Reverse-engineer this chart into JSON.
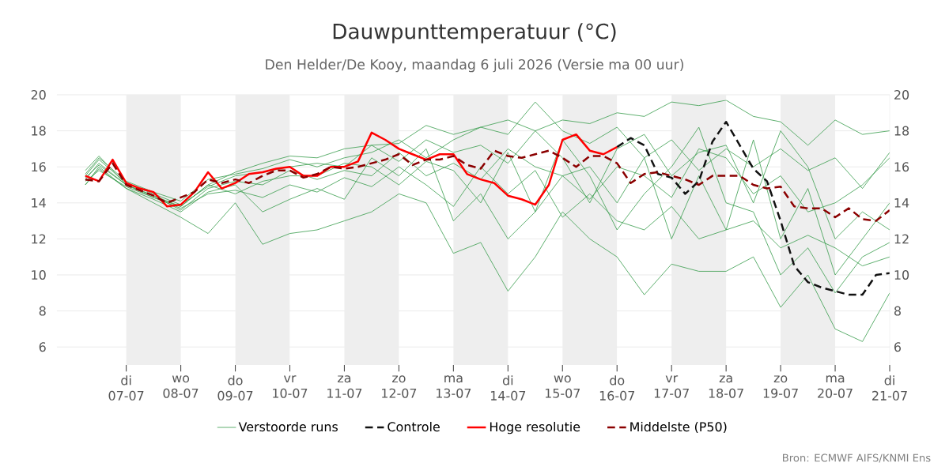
{
  "chart_data": {
    "type": "line",
    "title": "Dauwpunttemperatuur (°C)",
    "subtitle": "Den Helder/De Kooy, maandag  6 juli 2026 (Versie ma 00 uur)",
    "annotations": [
      "Bron: ECMWF AIFS/KNMI Ens"
    ],
    "xlim": [
      "2026-07-05T17:30",
      "2026-07-21T00:00"
    ],
    "xticks": [
      {
        "value": "2026-07-07",
        "label": "di 07-07"
      },
      {
        "value": "2026-07-08",
        "label": "wo 08-07"
      },
      {
        "value": "2026-07-09",
        "label": "do 09-07"
      },
      {
        "value": "2026-07-10",
        "label": "vr 10-07"
      },
      {
        "value": "2026-07-11",
        "label": "za 11-07"
      },
      {
        "value": "2026-07-12",
        "label": "zo 12-07"
      },
      {
        "value": "2026-07-13",
        "label": "ma 13-07"
      },
      {
        "value": "2026-07-14",
        "label": "di 14-07"
      },
      {
        "value": "2026-07-15",
        "label": "wo 15-07"
      },
      {
        "value": "2026-07-16",
        "label": "do 16-07"
      },
      {
        "value": "2026-07-17",
        "label": "vr 17-07"
      },
      {
        "value": "2026-07-18",
        "label": "za 18-07"
      },
      {
        "value": "2026-07-19",
        "label": "zo 19-07"
      },
      {
        "value": "2026-07-20",
        "label": "ma 20-07"
      },
      {
        "value": "2026-07-21",
        "label": "di 21-07"
      }
    ],
    "ylim": [
      5,
      20
    ],
    "yticks": [
      6,
      8,
      10,
      12,
      14,
      16,
      18,
      20
    ],
    "y2lim": [
      5,
      20
    ],
    "y2ticks": [
      6,
      8,
      10,
      12,
      14,
      16,
      18,
      20
    ],
    "grid": "y",
    "legend": "bottom",
    "bands": [
      {
        "axis": "x",
        "from": "2026-07-07",
        "to": "2026-07-08",
        "color": "#eeeeee"
      },
      {
        "axis": "x",
        "from": "2026-07-09",
        "to": "2026-07-10",
        "color": "#eeeeee"
      },
      {
        "axis": "x",
        "from": "2026-07-11",
        "to": "2026-07-12",
        "color": "#eeeeee"
      },
      {
        "axis": "x",
        "from": "2026-07-13",
        "to": "2026-07-14",
        "color": "#eeeeee"
      },
      {
        "axis": "x",
        "from": "2026-07-15",
        "to": "2026-07-16",
        "color": "#eeeeee"
      },
      {
        "axis": "x",
        "from": "2026-07-17",
        "to": "2026-07-18",
        "color": "#eeeeee"
      },
      {
        "axis": "x",
        "from": "2026-07-19",
        "to": "2026-07-20",
        "color": "#eeeeee"
      }
    ],
    "x": [
      "2026-07-06T06:00",
      "2026-07-06T12:00",
      "2026-07-07T00:00",
      "2026-07-07T12:00",
      "2026-07-08T00:00",
      "2026-07-08T12:00",
      "2026-07-09T00:00",
      "2026-07-09T12:00",
      "2026-07-10T00:00",
      "2026-07-10T12:00",
      "2026-07-11T00:00",
      "2026-07-11T12:00",
      "2026-07-12T00:00",
      "2026-07-12T12:00",
      "2026-07-13T00:00",
      "2026-07-13T12:00",
      "2026-07-14T00:00",
      "2026-07-14T12:00",
      "2026-07-15T00:00",
      "2026-07-15T12:00",
      "2026-07-16T00:00",
      "2026-07-16T12:00",
      "2026-07-17T00:00",
      "2026-07-17T12:00",
      "2026-07-18T00:00",
      "2026-07-18T12:00",
      "2026-07-19T00:00",
      "2026-07-19T12:00",
      "2026-07-20T00:00",
      "2026-07-20T12:00",
      "2026-07-21T00:00"
    ],
    "series": [
      {
        "name": "Verstoorde runs",
        "color": "#3f9f52",
        "values": [
          15.8,
          16.6,
          15.0,
          14.3,
          13.8,
          15.0,
          15.7,
          16.2,
          16.6,
          16.5,
          17.0,
          17.2,
          17.3,
          18.3,
          17.8,
          18.2,
          18.6,
          18.0,
          18.6,
          18.4,
          19.0,
          18.8,
          19.6,
          19.4,
          19.7,
          18.8,
          18.5,
          17.2,
          18.6,
          17.8,
          18.0
        ]
      },
      {
        "color": "#3f9f52",
        "values": [
          15.0,
          16.0,
          14.8,
          14.0,
          13.2,
          12.3,
          14.0,
          11.7,
          12.3,
          12.5,
          13.0,
          13.5,
          14.5,
          14.0,
          11.2,
          11.8,
          9.1,
          11.0,
          13.5,
          12.0,
          11.0,
          8.9,
          10.6,
          10.2,
          10.2,
          11.0,
          8.2,
          10.0,
          7.0,
          6.3,
          9.0
        ]
      },
      {
        "color": "#3f9f52",
        "values": [
          15.3,
          16.2,
          15.0,
          14.4,
          13.6,
          14.8,
          15.2,
          15.0,
          15.8,
          15.3,
          15.8,
          15.5,
          16.8,
          15.5,
          16.2,
          15.3,
          17.0,
          16.0,
          15.5,
          14.2,
          16.0,
          15.5,
          14.3,
          17.0,
          16.5,
          14.5,
          15.5,
          13.5,
          14.0,
          15.0,
          16.5
        ]
      },
      {
        "color": "#3f9f52",
        "values": [
          15.6,
          16.5,
          15.2,
          14.6,
          14.1,
          15.3,
          15.6,
          15.9,
          16.4,
          16.0,
          16.5,
          16.8,
          17.5,
          16.5,
          17.5,
          18.2,
          17.8,
          19.6,
          18.0,
          17.3,
          18.2,
          16.5,
          17.5,
          15.8,
          17.0,
          16.0,
          17.0,
          15.8,
          16.5,
          14.8,
          16.8
        ]
      },
      {
        "color": "#3f9f52",
        "values": [
          15.2,
          15.8,
          14.9,
          14.3,
          13.7,
          14.5,
          14.7,
          14.3,
          15.0,
          14.6,
          15.4,
          14.9,
          16.0,
          15.0,
          13.8,
          16.0,
          14.5,
          15.8,
          13.2,
          14.5,
          13.0,
          12.5,
          13.8,
          12.0,
          12.5,
          13.0,
          11.5,
          12.2,
          11.5,
          10.5,
          11.0
        ]
      },
      {
        "color": "#3f9f52",
        "values": [
          15.0,
          15.9,
          14.8,
          14.2,
          13.5,
          14.6,
          15.0,
          13.5,
          14.2,
          14.8,
          14.2,
          16.5,
          15.5,
          17.0,
          13.0,
          14.5,
          12.0,
          13.5,
          15.5,
          16.0,
          14.0,
          16.5,
          12.0,
          15.5,
          12.5,
          17.5,
          12.0,
          14.8,
          10.0,
          12.0,
          14.0
        ]
      },
      {
        "color": "#3f9f52",
        "values": [
          15.5,
          16.4,
          15.1,
          14.5,
          13.9,
          14.9,
          15.5,
          15.7,
          16.0,
          16.2,
          16.0,
          17.2,
          16.3,
          17.5,
          16.8,
          17.2,
          16.2,
          18.0,
          16.5,
          14.0,
          17.0,
          17.8,
          15.5,
          16.8,
          17.2,
          14.0,
          18.0,
          16.0,
          12.0,
          13.5,
          12.5
        ]
      },
      {
        "color": "#3f9f52",
        "values": [
          15.4,
          16.1,
          15.0,
          14.4,
          13.8,
          15.0,
          14.5,
          15.2,
          15.5,
          15.5,
          16.2,
          16.0,
          15.0,
          16.3,
          15.8,
          14.0,
          16.8,
          13.5,
          17.5,
          15.5,
          12.5,
          14.5,
          16.0,
          18.2,
          14.0,
          13.5,
          10.0,
          11.5,
          9.0,
          11.0,
          11.8
        ]
      },
      {
        "name": "Controle",
        "color": "#111111",
        "line_style": "dashed",
        "x": [
          "2026-07-16T00:00",
          "2026-07-16T06:00",
          "2026-07-16T12:00",
          "2026-07-16T18:00",
          "2026-07-17T00:00",
          "2026-07-17T06:00",
          "2026-07-17T12:00",
          "2026-07-17T18:00",
          "2026-07-18T00:00",
          "2026-07-18T06:00",
          "2026-07-18T12:00",
          "2026-07-18T18:00",
          "2026-07-19T00:00",
          "2026-07-19T06:00",
          "2026-07-19T12:00",
          "2026-07-19T18:00",
          "2026-07-20T00:00",
          "2026-07-20T06:00",
          "2026-07-20T12:00",
          "2026-07-20T18:00",
          "2026-07-21T00:00"
        ],
        "values": [
          17.1,
          17.6,
          17.2,
          15.6,
          15.4,
          14.5,
          15.2,
          17.4,
          18.5,
          17.2,
          15.9,
          15.2,
          13.0,
          10.5,
          9.6,
          9.3,
          9.1,
          8.9,
          8.9,
          10.0,
          10.1
        ]
      },
      {
        "name": "Hoge resolutie",
        "color": "#ff0000",
        "line_style": "solid",
        "x": [
          "2026-07-06T06:00",
          "2026-07-06T12:00",
          "2026-07-06T18:00",
          "2026-07-07T00:00",
          "2026-07-07T06:00",
          "2026-07-07T12:00",
          "2026-07-07T18:00",
          "2026-07-08T00:00",
          "2026-07-08T06:00",
          "2026-07-08T12:00",
          "2026-07-08T18:00",
          "2026-07-09T00:00",
          "2026-07-09T06:00",
          "2026-07-09T12:00",
          "2026-07-09T18:00",
          "2026-07-10T00:00",
          "2026-07-10T06:00",
          "2026-07-10T12:00",
          "2026-07-10T18:00",
          "2026-07-11T00:00",
          "2026-07-11T06:00",
          "2026-07-11T12:00",
          "2026-07-11T18:00",
          "2026-07-12T00:00",
          "2026-07-12T06:00",
          "2026-07-12T12:00",
          "2026-07-12T18:00",
          "2026-07-13T00:00",
          "2026-07-13T06:00",
          "2026-07-13T12:00",
          "2026-07-13T18:00",
          "2026-07-14T00:00",
          "2026-07-14T06:00",
          "2026-07-14T12:00",
          "2026-07-14T18:00",
          "2026-07-15T00:00",
          "2026-07-15T06:00",
          "2026-07-15T12:00",
          "2026-07-15T18:00",
          "2026-07-16T00:00"
        ],
        "values": [
          15.5,
          15.2,
          16.4,
          15.1,
          14.8,
          14.6,
          13.8,
          13.9,
          14.6,
          15.7,
          14.8,
          15.1,
          15.6,
          15.7,
          15.9,
          16.0,
          15.5,
          15.5,
          16.0,
          16.0,
          16.3,
          17.9,
          17.5,
          17.0,
          16.7,
          16.4,
          16.7,
          16.7,
          15.6,
          15.3,
          15.1,
          14.4,
          14.2,
          13.9,
          15.0,
          17.5,
          17.8,
          16.9,
          16.7,
          17.1
        ]
      },
      {
        "name": "Middelste (P50)",
        "color": "#8b0000",
        "line_style": "dashed",
        "x": [
          "2026-07-06T06:00",
          "2026-07-06T12:00",
          "2026-07-06T18:00",
          "2026-07-07T00:00",
          "2026-07-07T06:00",
          "2026-07-07T12:00",
          "2026-07-07T18:00",
          "2026-07-08T00:00",
          "2026-07-08T06:00",
          "2026-07-08T12:00",
          "2026-07-08T18:00",
          "2026-07-09T00:00",
          "2026-07-09T06:00",
          "2026-07-09T12:00",
          "2026-07-09T18:00",
          "2026-07-10T00:00",
          "2026-07-10T06:00",
          "2026-07-10T12:00",
          "2026-07-10T18:00",
          "2026-07-11T00:00",
          "2026-07-11T06:00",
          "2026-07-11T12:00",
          "2026-07-11T18:00",
          "2026-07-12T00:00",
          "2026-07-12T06:00",
          "2026-07-12T12:00",
          "2026-07-12T18:00",
          "2026-07-13T00:00",
          "2026-07-13T06:00",
          "2026-07-13T12:00",
          "2026-07-13T18:00",
          "2026-07-14T00:00",
          "2026-07-14T06:00",
          "2026-07-14T12:00",
          "2026-07-14T18:00",
          "2026-07-15T00:00",
          "2026-07-15T06:00",
          "2026-07-15T12:00",
          "2026-07-15T18:00",
          "2026-07-16T00:00",
          "2026-07-16T06:00",
          "2026-07-16T12:00",
          "2026-07-16T18:00",
          "2026-07-17T00:00",
          "2026-07-17T06:00",
          "2026-07-17T12:00",
          "2026-07-17T18:00",
          "2026-07-18T00:00",
          "2026-07-18T06:00",
          "2026-07-18T12:00",
          "2026-07-18T18:00",
          "2026-07-19T00:00",
          "2026-07-19T06:00",
          "2026-07-19T12:00",
          "2026-07-19T18:00",
          "2026-07-20T00:00",
          "2026-07-20T06:00",
          "2026-07-20T12:00",
          "2026-07-20T18:00",
          "2026-07-21T00:00"
        ],
        "values": [
          15.3,
          15.2,
          16.2,
          15.0,
          14.7,
          14.4,
          14.0,
          14.3,
          14.6,
          15.3,
          15.1,
          15.3,
          15.1,
          15.5,
          15.8,
          15.8,
          15.4,
          15.6,
          16.0,
          15.9,
          16.0,
          16.2,
          16.4,
          16.7,
          16.1,
          16.4,
          16.4,
          16.6,
          16.1,
          15.9,
          16.9,
          16.6,
          16.5,
          16.7,
          16.9,
          16.5,
          16.0,
          16.6,
          16.6,
          16.2,
          15.1,
          15.6,
          15.7,
          15.5,
          15.3,
          15.0,
          15.5,
          15.5,
          15.5,
          15.0,
          14.8,
          14.9,
          13.8,
          13.7,
          13.7,
          13.2,
          13.7,
          13.1,
          13.0,
          13.6
        ]
      }
    ]
  }
}
